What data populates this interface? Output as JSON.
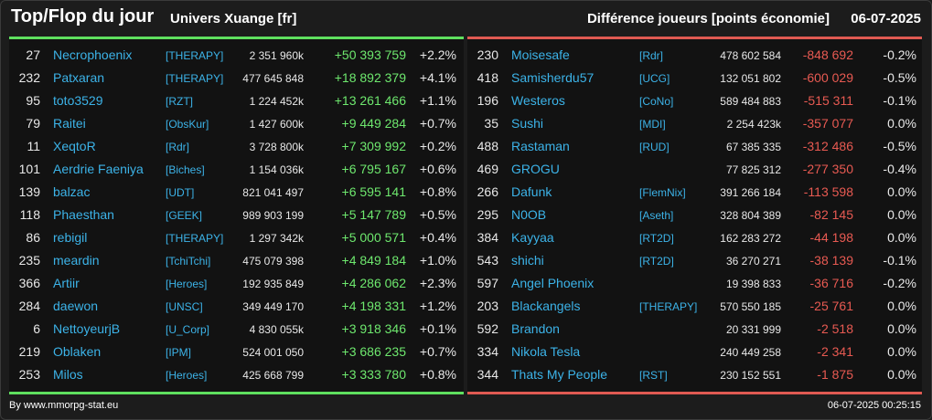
{
  "header": {
    "title": "Top/Flop du jour",
    "universe": "Univers Xuange [fr]",
    "difference": "Différence joueurs [points économie]",
    "date": "06-07-2025"
  },
  "colors": {
    "top_accent": "#5fe05f",
    "flop_accent": "#e05a52",
    "link": "#3cb3e8"
  },
  "top": [
    {
      "rank": "27",
      "name": "Necrophoenix",
      "alliance": "[THERAPY]",
      "points": "2 351 960k",
      "delta": "+50 393 759",
      "pct": "+2.2%"
    },
    {
      "rank": "232",
      "name": "Patxaran",
      "alliance": "[THERAPY]",
      "points": "477 645 848",
      "delta": "+18 892 379",
      "pct": "+4.1%"
    },
    {
      "rank": "95",
      "name": "toto3529",
      "alliance": "[RZT]",
      "points": "1 224 452k",
      "delta": "+13 261 466",
      "pct": "+1.1%"
    },
    {
      "rank": "79",
      "name": "Raitei",
      "alliance": "[ObsKur]",
      "points": "1 427 600k",
      "delta": "+9 449 284",
      "pct": "+0.7%"
    },
    {
      "rank": "11",
      "name": "XeqtoR",
      "alliance": "[Rdr]",
      "points": "3 728 800k",
      "delta": "+7 309 992",
      "pct": "+0.2%"
    },
    {
      "rank": "101",
      "name": "Aerdrie Faeniya",
      "alliance": "[Biches]",
      "points": "1 154 036k",
      "delta": "+6 795 167",
      "pct": "+0.6%"
    },
    {
      "rank": "139",
      "name": "balzac",
      "alliance": "[UDT]",
      "points": "821 041 497",
      "delta": "+6 595 141",
      "pct": "+0.8%"
    },
    {
      "rank": "118",
      "name": "Phaesthan",
      "alliance": "[GEEK]",
      "points": "989 903 199",
      "delta": "+5 147 789",
      "pct": "+0.5%"
    },
    {
      "rank": "86",
      "name": "rebigil",
      "alliance": "[THERAPY]",
      "points": "1 297 342k",
      "delta": "+5 000 571",
      "pct": "+0.4%"
    },
    {
      "rank": "235",
      "name": "meardin",
      "alliance": "[TchiTchi]",
      "points": "475 079 398",
      "delta": "+4 849 184",
      "pct": "+1.0%"
    },
    {
      "rank": "366",
      "name": "Artiir",
      "alliance": "[Heroes]",
      "points": "192 935 849",
      "delta": "+4 286 062",
      "pct": "+2.3%"
    },
    {
      "rank": "284",
      "name": "daewon",
      "alliance": "[UNSC]",
      "points": "349 449 170",
      "delta": "+4 198 331",
      "pct": "+1.2%"
    },
    {
      "rank": "6",
      "name": "NettoyeurjB",
      "alliance": "[U_Corp]",
      "points": "4 830 055k",
      "delta": "+3 918 346",
      "pct": "+0.1%"
    },
    {
      "rank": "219",
      "name": "Oblaken",
      "alliance": "[IPM]",
      "points": "524 001 050",
      "delta": "+3 686 235",
      "pct": "+0.7%"
    },
    {
      "rank": "253",
      "name": "Milos",
      "alliance": "[Heroes]",
      "points": "425 668 799",
      "delta": "+3 333 780",
      "pct": "+0.8%"
    }
  ],
  "flop": [
    {
      "rank": "230",
      "name": "Moisesafe",
      "alliance": "[Rdr]",
      "points": "478 602 584",
      "delta": "-848 692",
      "pct": "-0.2%"
    },
    {
      "rank": "418",
      "name": "Samisherdu57",
      "alliance": "[UCG]",
      "points": "132 051 802",
      "delta": "-600 029",
      "pct": "-0.5%"
    },
    {
      "rank": "196",
      "name": "Westeros",
      "alliance": "[CoNo]",
      "points": "589 484 883",
      "delta": "-515 311",
      "pct": "-0.1%"
    },
    {
      "rank": "35",
      "name": "Sushi",
      "alliance": "[MDI]",
      "points": "2 254 423k",
      "delta": "-357 077",
      "pct": "0.0%"
    },
    {
      "rank": "488",
      "name": "Rastaman",
      "alliance": "[RUD]",
      "points": "67 385 335",
      "delta": "-312 486",
      "pct": "-0.5%"
    },
    {
      "rank": "469",
      "name": "GROGU",
      "alliance": "",
      "points": "77 825 312",
      "delta": "-277 350",
      "pct": "-0.4%"
    },
    {
      "rank": "266",
      "name": "Dafunk",
      "alliance": "[FlemNix]",
      "points": "391 266 184",
      "delta": "-113 598",
      "pct": "0.0%"
    },
    {
      "rank": "295",
      "name": "N0OB",
      "alliance": "[Aseth]",
      "points": "328 804 389",
      "delta": "-82 145",
      "pct": "0.0%"
    },
    {
      "rank": "384",
      "name": "Kayyaa",
      "alliance": "[RT2D]",
      "points": "162 283 272",
      "delta": "-44 198",
      "pct": "0.0%"
    },
    {
      "rank": "543",
      "name": "shichi",
      "alliance": "[RT2D]",
      "points": "36 270 271",
      "delta": "-38 139",
      "pct": "-0.1%"
    },
    {
      "rank": "597",
      "name": "Angel Phoenix",
      "alliance": "",
      "points": "19 398 833",
      "delta": "-36 716",
      "pct": "-0.2%"
    },
    {
      "rank": "203",
      "name": "Blackangels",
      "alliance": "[THERAPY]",
      "points": "570 550 185",
      "delta": "-25 761",
      "pct": "0.0%"
    },
    {
      "rank": "592",
      "name": "Brandon",
      "alliance": "",
      "points": "20 331 999",
      "delta": "-2 518",
      "pct": "0.0%"
    },
    {
      "rank": "334",
      "name": "Nikola Tesla",
      "alliance": "",
      "points": "240 449 258",
      "delta": "-2 341",
      "pct": "0.0%"
    },
    {
      "rank": "344",
      "name": "Thats My People",
      "alliance": "[RST]",
      "points": "230 152 551",
      "delta": "-1 875",
      "pct": "0.0%"
    }
  ],
  "footer": {
    "credit": "By www.mmorpg-stat.eu",
    "timestamp": "06-07-2025 00:25:15"
  }
}
